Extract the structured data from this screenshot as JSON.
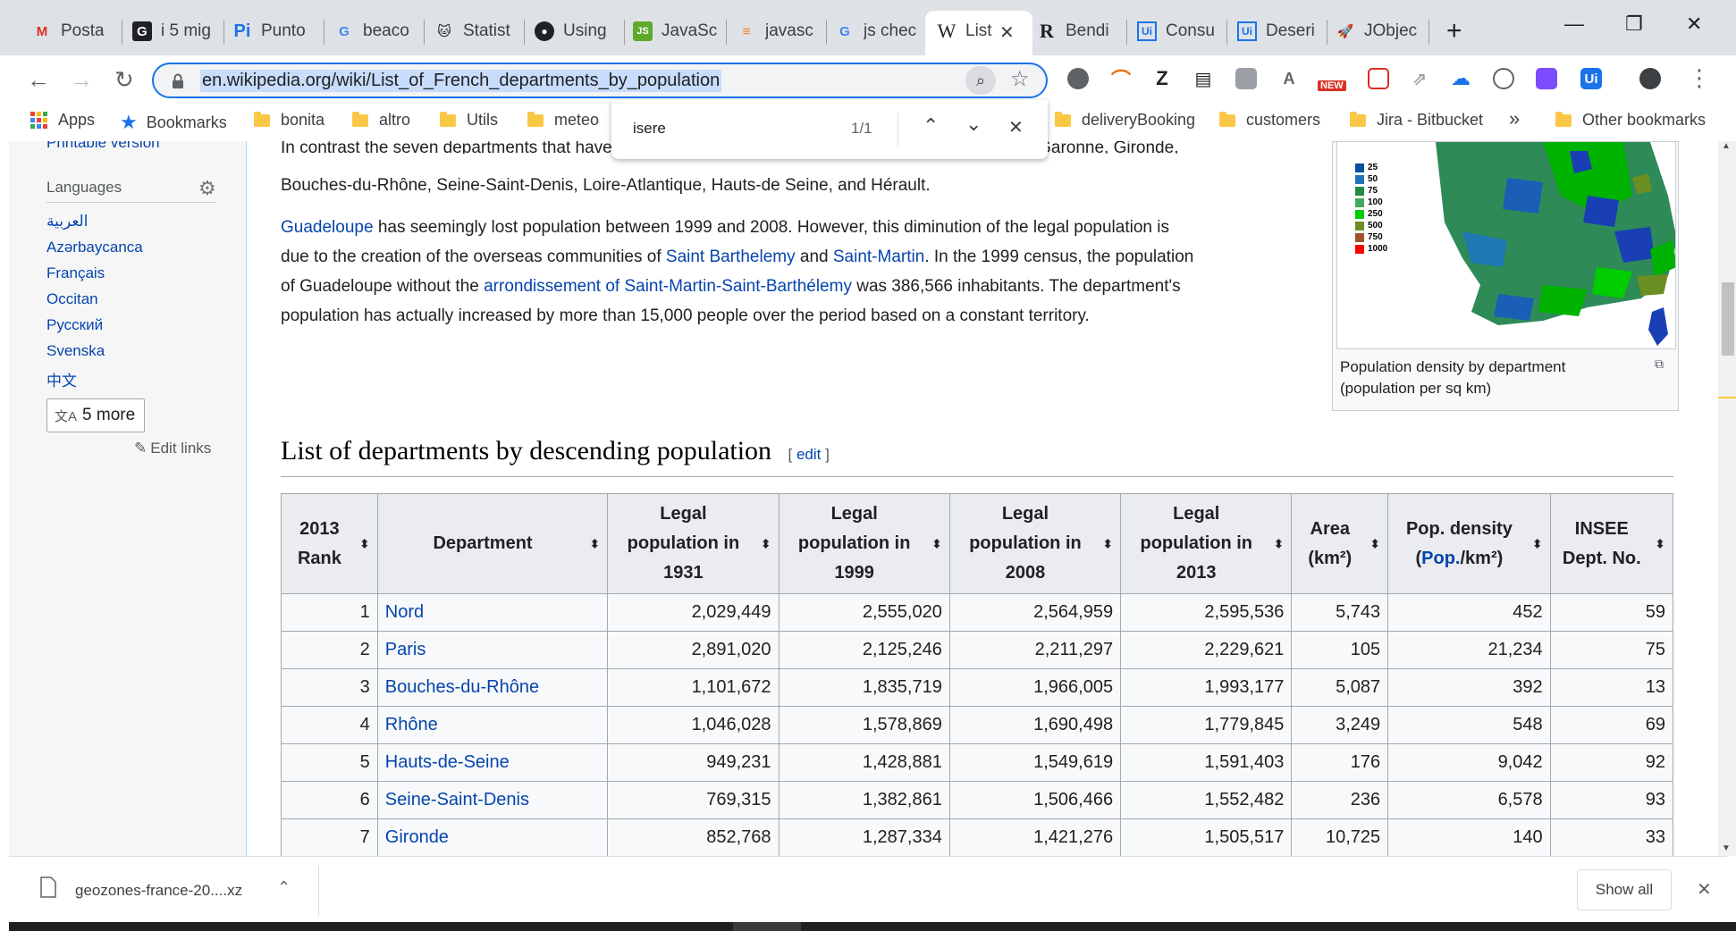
{
  "tabs": [
    {
      "title": "Posta i",
      "icon": "gmail-icon",
      "color": "#d93025",
      "glyph": "M"
    },
    {
      "title": "i 5 mig",
      "icon": "g-letter-icon",
      "color": "#202124",
      "glyph": "G"
    },
    {
      "title": "Punto",
      "icon": "pi-icon",
      "color": "#1a73e8",
      "glyph": "Pi"
    },
    {
      "title": "beaco",
      "icon": "google-icon",
      "color": "#4285f4",
      "glyph": "G"
    },
    {
      "title": "Statist",
      "icon": "cat-icon",
      "color": "#202124",
      "glyph": "🐱"
    },
    {
      "title": "Using",
      "icon": "github-icon",
      "color": "#202124",
      "glyph": "●"
    },
    {
      "title": "JavaSc",
      "icon": "code-icon",
      "color": "#5fa92d",
      "glyph": "JS"
    },
    {
      "title": "javasc",
      "icon": "stackoverflow-icon",
      "color": "#f48024",
      "glyph": "≡"
    },
    {
      "title": "js chec",
      "icon": "google-icon",
      "color": "#4285f4",
      "glyph": "G"
    },
    {
      "title": "List",
      "icon": "wikipedia-icon",
      "color": "#202124",
      "glyph": "W"
    },
    {
      "title": "Bendi",
      "icon": "r-icon",
      "color": "#202124",
      "glyph": "R"
    },
    {
      "title": "Consu",
      "icon": "ui-icon",
      "color": "#1a73e8",
      "glyph": "Ui"
    },
    {
      "title": "Deseri",
      "icon": "ui-icon",
      "color": "#1a73e8",
      "glyph": "Ui"
    },
    {
      "title": "JObjec",
      "icon": "rocket-icon",
      "color": "#202124",
      "glyph": "🚀"
    }
  ],
  "omnibox": {
    "url": "en.wikipedia.org/wiki/List_of_French_departments_by_population"
  },
  "extensions": {
    "new_badge": "NEW"
  },
  "bookmarks": {
    "apps": "Apps",
    "bookmarks": "Bookmarks",
    "folders_left": [
      "bonita",
      "altro",
      "Utils",
      "meteo"
    ],
    "folders_right": [
      "deliveryBooking",
      "customers",
      "Jira - Bitbucket"
    ],
    "overflow": "»",
    "other": "Other bookmarks"
  },
  "findbar": {
    "query": "isere",
    "count": "1/1"
  },
  "sidebar": {
    "cut_text": "Printable version",
    "languages_title": "Languages",
    "languages": [
      "العربية",
      "Azərbaycanca",
      "Français",
      "Occitan",
      "Русский",
      "Svenska",
      "中文"
    ],
    "more_button": "5 more",
    "edit_links": "Edit links"
  },
  "article": {
    "para1_cut": "In contrast the seven departments that have gained the most population in absolute value are Haute-Garonne, Gironde,",
    "para1_end": "Bouches-du-Rhône, Seine-Saint-Denis, Loire-Atlantique, Hauts-de Seine, and Hérault.",
    "para2": {
      "l1_link": "Guadeloupe",
      "l1_text": " has seemingly lost population between 1999 and 2008. However, this diminution of the legal population is",
      "l2_a": "due to the creation of the overseas communities of ",
      "l2_link1": "Saint Barthelemy",
      "l2_b": " and ",
      "l2_link2": "Saint-Martin",
      "l2_c": ". In the 1999 census, the population",
      "l3_a": "of Guadeloupe without the ",
      "l3_link": "arrondissement of Saint-Martin-Saint-Barthélemy",
      "l3_b": " was 386,566 inhabitants. The department's",
      "l4": "population has actually increased by more than 15,000 people over the period based on a constant territory."
    },
    "map_legend": [
      "25",
      "50",
      "75",
      "100",
      "250",
      "500",
      "750",
      "1000"
    ],
    "map_legend_colors": [
      "#08519c",
      "#2171b5",
      "#238b45",
      "#41ab5d",
      "#00cc00",
      "#6b8e23",
      "#a0522d",
      "#ff0000"
    ],
    "map_caption": "Population density by department (population per sq km)",
    "section_title": "List of departments by descending population",
    "section_edit": "edit"
  },
  "table": {
    "headers": [
      [
        "2013",
        "Rank"
      ],
      [
        "Department"
      ],
      [
        "Legal",
        "population in",
        "1931"
      ],
      [
        "Legal",
        "population in",
        "1999"
      ],
      [
        "Legal",
        "population in",
        "2008"
      ],
      [
        "Legal",
        "population in",
        "2013"
      ],
      [
        "Area",
        "(km²)"
      ],
      [
        "Pop. density",
        "(Pop./km²)"
      ],
      [
        "INSEE",
        "Dept. No."
      ]
    ],
    "rows": [
      [
        "1",
        "Nord",
        "2,029,449",
        "2,555,020",
        "2,564,959",
        "2,595,536",
        "5,743",
        "452",
        "59"
      ],
      [
        "2",
        "Paris",
        "2,891,020",
        "2,125,246",
        "2,211,297",
        "2,229,621",
        "105",
        "21,234",
        "75"
      ],
      [
        "3",
        "Bouches-du-Rhône",
        "1,101,672",
        "1,835,719",
        "1,966,005",
        "1,993,177",
        "5,087",
        "392",
        "13"
      ],
      [
        "4",
        "Rhône",
        "1,046,028",
        "1,578,869",
        "1,690,498",
        "1,779,845",
        "3,249",
        "548",
        "69"
      ],
      [
        "5",
        "Hauts-de-Seine",
        "949,231",
        "1,428,881",
        "1,549,619",
        "1,591,403",
        "176",
        "9,042",
        "92"
      ],
      [
        "6",
        "Seine-Saint-Denis",
        "769,315",
        "1,382,861",
        "1,506,466",
        "1,552,482",
        "236",
        "6,578",
        "93"
      ],
      [
        "7",
        "Gironde",
        "852,768",
        "1,287,334",
        "1,421,276",
        "1,505,517",
        "10,725",
        "140",
        "33"
      ]
    ]
  },
  "download": {
    "filename": "geozones-france-20....xz",
    "show_all": "Show all"
  }
}
